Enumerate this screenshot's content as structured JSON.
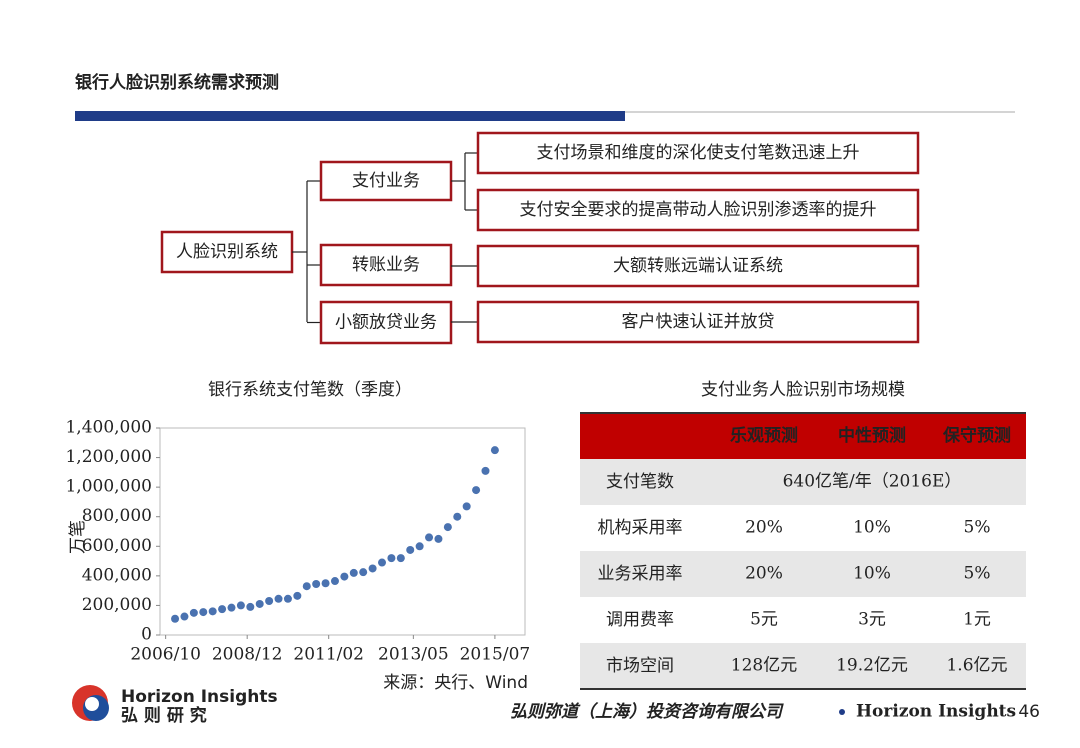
{
  "header": {
    "title": "银行人脸识别系统需求预测"
  },
  "tree": {
    "root": "人脸识别系统",
    "branches": [
      {
        "label": "支付业务",
        "leaves": [
          "支付场景和维度的深化使支付笔数迅速上升",
          "支付安全要求的提高带动人脸识别渗透率的提升"
        ]
      },
      {
        "label": "转账业务",
        "leaves": [
          "大额转账远端认证系统"
        ]
      },
      {
        "label": "小额放贷业务",
        "leaves": [
          "客户快速认证并放贷"
        ]
      }
    ]
  },
  "chart_data": {
    "type": "scatter",
    "title": "银行系统支付笔数（季度）",
    "y_label": "万笔",
    "source": "来源：央行、Wind",
    "color": "#4a72b0",
    "x": [
      2007,
      2007.25,
      2007.5,
      2007.75,
      2008,
      2008.25,
      2008.5,
      2008.75,
      2009,
      2009.25,
      2009.5,
      2009.75,
      2010,
      2010.25,
      2010.5,
      2010.75,
      2011,
      2011.25,
      2011.5,
      2011.75,
      2012,
      2012.25,
      2012.5,
      2012.75,
      2013,
      2013.25,
      2013.5,
      2013.75,
      2014,
      2014.25,
      2014.5,
      2014.75,
      2015,
      2015.25,
      2015.5
    ],
    "values": [
      110000,
      125000,
      150000,
      155000,
      160000,
      175000,
      185000,
      200000,
      190000,
      210000,
      230000,
      245000,
      245000,
      265000,
      330000,
      345000,
      350000,
      365000,
      395000,
      420000,
      425000,
      450000,
      490000,
      520000,
      520000,
      575000,
      600000,
      660000,
      650000,
      730000,
      800000,
      870000,
      980000,
      1110000,
      1250000
    ],
    "xlim": [
      2006.6,
      2016.3
    ],
    "xticks": [
      {
        "value": 2006.75,
        "label": "2006/10"
      },
      {
        "value": 2008.917,
        "label": "2008/12"
      },
      {
        "value": 2011.083,
        "label": "2011/02"
      },
      {
        "value": 2013.333,
        "label": "2013/05"
      },
      {
        "value": 2015.5,
        "label": "2015/07"
      }
    ],
    "ylim": [
      0,
      1400000
    ],
    "yticks": [
      0,
      {
        "value": 200000,
        "label": "200,000"
      },
      {
        "value": 400000,
        "label": "400,000"
      },
      {
        "value": 600000,
        "label": "600,000"
      },
      {
        "value": 800000,
        "label": "800,000"
      },
      {
        "value": 1000000,
        "label": "1,000,000"
      },
      {
        "value": 1200000,
        "label": "1,200,000"
      },
      {
        "value": 1400000,
        "label": "1,400,000"
      }
    ],
    "grid": false
  },
  "table": {
    "title": "支付业务人脸识别市场规模",
    "columns": [
      "乐观预测",
      "中性预测",
      "保守预测"
    ],
    "rows": [
      [
        "支付笔数",
        "640亿笔/年（2016E）"
      ],
      [
        "机构采用率",
        "20%",
        "10%",
        "5%"
      ],
      [
        "业务采用率",
        "20%",
        "10%",
        "5%"
      ],
      [
        "调用费率",
        "5元",
        "3元",
        "1元"
      ],
      [
        "市场空间",
        "128亿元",
        "19.2亿元",
        "1.6亿元"
      ]
    ]
  },
  "footer": {
    "logo_en": "Horizon Insights",
    "logo_cn": "弘 则 研 究",
    "company": "弘则弥道（上海）投资咨询有限公司",
    "brand": "Horizon Insights",
    "page": "46"
  }
}
